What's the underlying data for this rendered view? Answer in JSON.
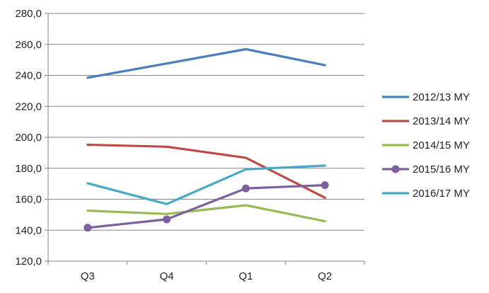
{
  "chart_data": {
    "type": "line",
    "categories": [
      "Q3",
      "Q4",
      "Q1",
      "Q2"
    ],
    "ylim": [
      120,
      280
    ],
    "yticks": [
      120,
      140,
      160,
      180,
      200,
      220,
      240,
      260,
      280
    ],
    "ytick_labels": [
      "120,0",
      "140,0",
      "160,0",
      "180,0",
      "200,0",
      "220,0",
      "240,0",
      "260,0",
      "280,0"
    ],
    "grid": "horizontal",
    "legend_position": "right",
    "series": [
      {
        "name": "2012/13 MY",
        "values": [
          238.5,
          247.7,
          256.9,
          246.6
        ],
        "color": "#4a7ebb",
        "markers": false
      },
      {
        "name": "2013/14 MY",
        "values": [
          195.2,
          193.9,
          186.8,
          161.0
        ],
        "color": "#be4b48",
        "markers": false
      },
      {
        "name": "2014/15 MY",
        "values": [
          152.6,
          150.5,
          156.1,
          145.8
        ],
        "color": "#98b954",
        "markers": false
      },
      {
        "name": "2015/16 MY",
        "values": [
          141.6,
          147.0,
          167.0,
          169.1
        ],
        "color": "#7d60a0",
        "markers": true
      },
      {
        "name": "2016/17 MY",
        "values": [
          170.3,
          156.9,
          179.3,
          181.7
        ],
        "color": "#46aac5",
        "markers": false
      }
    ]
  }
}
